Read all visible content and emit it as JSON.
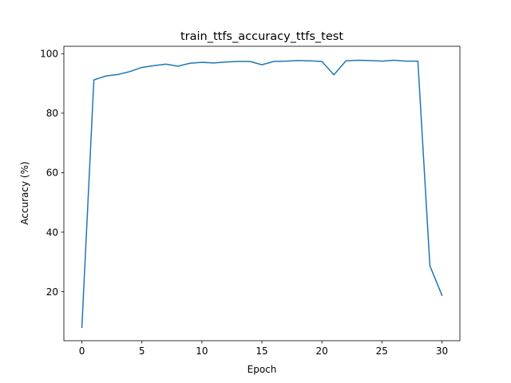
{
  "chart_data": {
    "type": "line",
    "title": "train_ttfs_accuracy_ttfs_test",
    "xlabel": "Epoch",
    "ylabel": "Accuracy (%)",
    "xlim": [
      -1.5,
      31.5
    ],
    "ylim": [
      3.5,
      102.5
    ],
    "xticks": [
      0,
      5,
      10,
      15,
      20,
      25,
      30
    ],
    "yticks": [
      20,
      40,
      60,
      80,
      100
    ],
    "grid": false,
    "legend": "none",
    "series": [
      {
        "color": "#1f77b4",
        "x": [
          0,
          1,
          2,
          3,
          4,
          5,
          6,
          7,
          8,
          9,
          10,
          11,
          12,
          13,
          14,
          15,
          16,
          17,
          18,
          19,
          20,
          21,
          22,
          23,
          24,
          25,
          26,
          27,
          28,
          29,
          30
        ],
        "y": [
          8,
          91.2,
          92.5,
          93.0,
          94.0,
          95.4,
          96.0,
          96.5,
          95.8,
          96.8,
          97.1,
          96.9,
          97.2,
          97.4,
          97.4,
          96.3,
          97.4,
          97.5,
          97.7,
          97.6,
          97.4,
          92.9,
          97.6,
          97.8,
          97.7,
          97.5,
          97.8,
          97.5,
          97.5,
          28.7,
          18.8
        ]
      }
    ]
  }
}
